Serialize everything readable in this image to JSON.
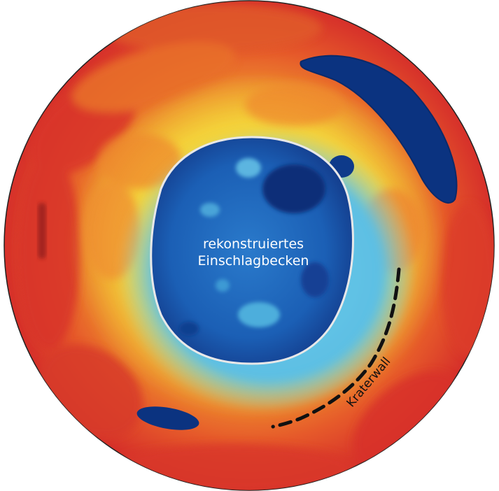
{
  "labels": {
    "basin_line1": "rekonstruiertes",
    "basin_line2": "Einschlagbecken",
    "crater_wall": "Kraterwall"
  },
  "colors": {
    "outer_red": "#d8362a",
    "orange": "#ec7a2c",
    "yellow": "#f5d93a",
    "light_blue": "#62c3e6",
    "mid_blue": "#1e64b8",
    "dark_blue": "#0a2f78",
    "outline_white": "#e8e8e8",
    "wall_dash": "#111111"
  }
}
